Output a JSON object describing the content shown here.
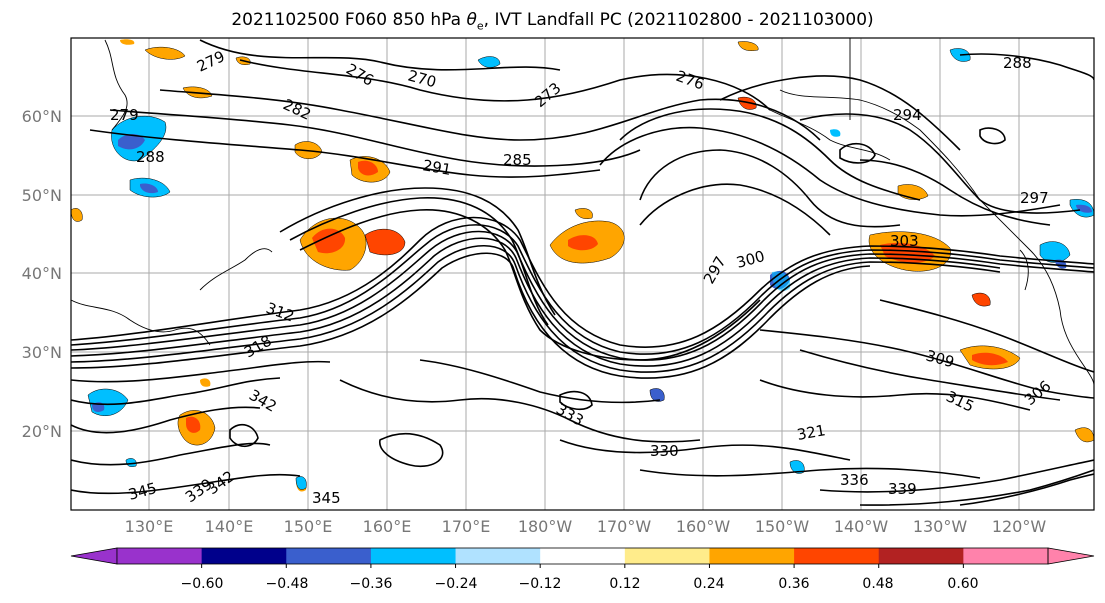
{
  "title_prefix": "2021102500 F060 850 hPa ",
  "title_symbol": "θ",
  "title_sub": "e",
  "title_suffix": ", IVT Landfall PC (2021102800 - 2021103000)",
  "lat_labels": [
    "60°N",
    "50°N",
    "40°N",
    "30°N",
    "20°N"
  ],
  "lon_labels": [
    "130°E",
    "140°E",
    "150°E",
    "160°E",
    "170°E",
    "180°W",
    "170°W",
    "160°W",
    "150°W",
    "140°W",
    "130°W",
    "120°W"
  ],
  "colorbar": {
    "colors": [
      "#9932CC",
      "#00008B",
      "#3A5FCD",
      "#00BFFF",
      "#B0E2FF",
      "#FFFFFF",
      "#FFEC8B",
      "#FFA500",
      "#FF4500",
      "#B22222",
      "#FF82AB"
    ],
    "extend_low_color": "#9932CC",
    "extend_high_color": "#FF82AB",
    "tick_labels": [
      "−0.60",
      "−0.48",
      "−0.36",
      "−0.24",
      "−0.12",
      "0.12",
      "0.24",
      "0.36",
      "0.48",
      "0.60"
    ]
  },
  "contour_labels": [
    "279",
    "276",
    "270",
    "273",
    "276",
    "288",
    "279",
    "282",
    "288",
    "291",
    "285",
    "294",
    "297",
    "297",
    "300",
    "303",
    "306",
    "309",
    "312",
    "315",
    "318",
    "321",
    "330",
    "333",
    "336",
    "339",
    "342",
    "345",
    "345",
    "342",
    "339"
  ]
}
